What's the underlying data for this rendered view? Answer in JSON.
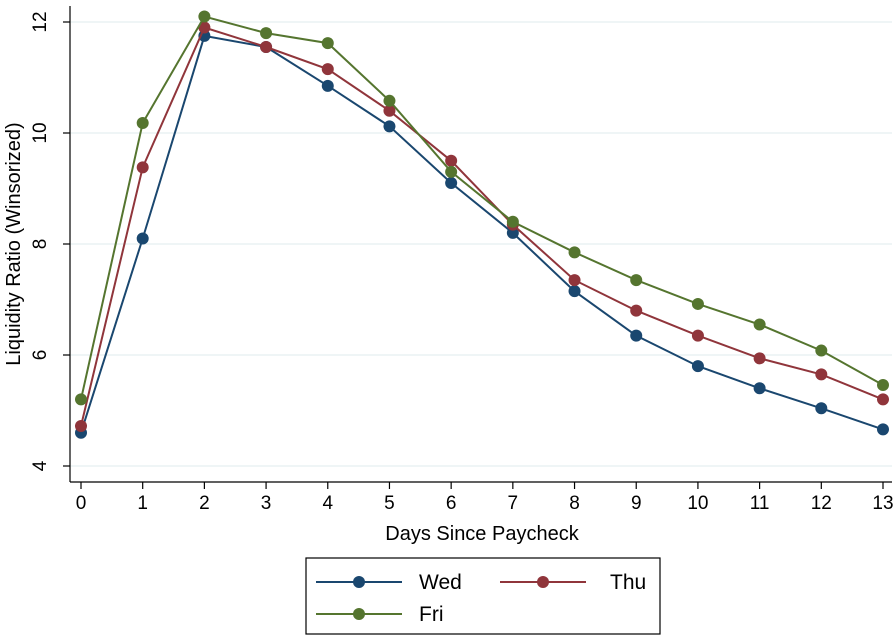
{
  "chart_data": {
    "type": "line",
    "title": "",
    "xlabel": "Days Since Paycheck",
    "ylabel": "Liquidity Ratio (Winsorized)",
    "x": [
      0,
      1,
      2,
      3,
      4,
      5,
      6,
      7,
      8,
      9,
      10,
      11,
      12,
      13
    ],
    "xticks": [
      "0",
      "1",
      "2",
      "3",
      "4",
      "5",
      "6",
      "7",
      "8",
      "9",
      "10",
      "11",
      "12",
      "13"
    ],
    "xlim": [
      0,
      13
    ],
    "yticks": [
      "4",
      "6",
      "8",
      "10",
      "12"
    ],
    "ylim": [
      4,
      12
    ],
    "grid": true,
    "legend_position": "bottom",
    "series": [
      {
        "name": "Wed",
        "color": "#1a476f",
        "values": [
          4.6,
          8.1,
          11.75,
          11.55,
          10.85,
          10.12,
          9.1,
          8.2,
          7.15,
          6.35,
          5.8,
          5.4,
          5.04,
          4.66
        ]
      },
      {
        "name": "Thu",
        "color": "#90353b",
        "values": [
          4.72,
          9.38,
          11.9,
          11.55,
          11.15,
          10.4,
          9.5,
          8.35,
          7.35,
          6.8,
          6.35,
          5.94,
          5.65,
          5.2
        ]
      },
      {
        "name": "Fri",
        "color": "#55752f",
        "values": [
          5.2,
          10.18,
          12.1,
          11.8,
          11.62,
          10.58,
          9.3,
          8.4,
          7.85,
          7.35,
          6.92,
          6.55,
          6.08,
          5.46
        ]
      }
    ]
  }
}
